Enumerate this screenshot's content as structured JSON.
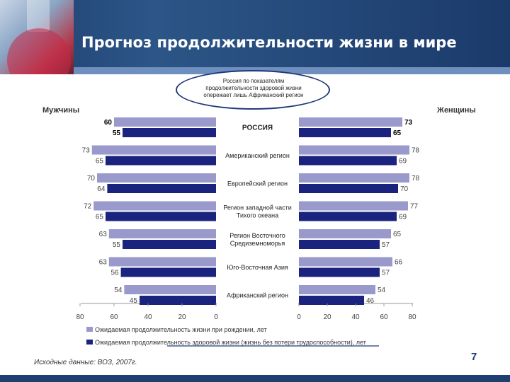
{
  "header": {
    "title": "Прогноз продолжительности жизни в мире",
    "bubble_text": "Россия по показателям продолжительности здоровой жизни опережает лишь Африканский регион"
  },
  "colors": {
    "header_bg": "#2c5687",
    "series_birth": "#9999cc",
    "series_healthy": "#1a237e",
    "accent": "#1f3a7a"
  },
  "chart_data": {
    "type": "bar",
    "orientation": "horizontal",
    "layout": "back-to-back",
    "left_panel_label": "Мужчины",
    "right_panel_label": "Женщины",
    "categories": [
      "РОССИЯ",
      "Американский регион",
      "Европейский регион",
      "Регион западной части Тихого океана",
      "Регион Восточного Средиземноморья",
      "Юго-Восточная Азия",
      "Африканский регион"
    ],
    "series": [
      {
        "name": "Ожидаемая продолжительность жизни при рождении, лет",
        "color": "#9999cc",
        "men": [
          60,
          73,
          70,
          72,
          63,
          63,
          54
        ],
        "women": [
          73,
          78,
          78,
          77,
          65,
          66,
          54
        ]
      },
      {
        "name": "Ожидаемая продолжительность здоровой жизни (жизнь без потери трудоспособности), лет",
        "color": "#1a237e",
        "men": [
          55,
          65,
          64,
          65,
          55,
          56,
          45
        ],
        "women": [
          65,
          69,
          70,
          69,
          57,
          57,
          46
        ]
      }
    ],
    "men_ticks": [
      "80",
      "60",
      "40",
      "20",
      "0"
    ],
    "women_ticks": [
      "0",
      "20",
      "40",
      "60",
      "80"
    ],
    "xlim": [
      0,
      80
    ],
    "legend_position": "bottom"
  },
  "footer": {
    "source": "Исходные данные: ВОЗ, 2007г.",
    "page_number": "7"
  }
}
